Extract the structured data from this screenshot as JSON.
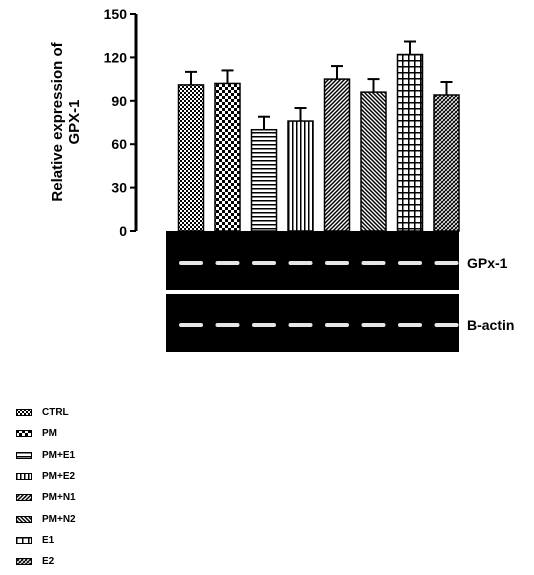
{
  "chart_data": {
    "type": "bar",
    "ylabel": "Relative expression of GPX-1",
    "ylabel_lines": [
      "Relative expression of",
      "GPX-1"
    ],
    "ylim": [
      0,
      150
    ],
    "yticks": [
      "0",
      "30",
      "60",
      "90",
      "120",
      "150"
    ],
    "categories": [
      "CTRL",
      "PM",
      "PM+E1",
      "PM+E2",
      "PM+N1",
      "PM+N2",
      "E1",
      "E2"
    ],
    "values": [
      101,
      102,
      70,
      76,
      105,
      96,
      122,
      94
    ],
    "errors": [
      9,
      9,
      9,
      9,
      9,
      9,
      9,
      9
    ],
    "grid": false,
    "legend_position": "bottom-left",
    "blot_labels": [
      "GPx-1",
      "B-actin"
    ]
  },
  "colors": {
    "bar_outline": "#000000",
    "blot_background": "#000000",
    "band": "#e6e6e6"
  }
}
